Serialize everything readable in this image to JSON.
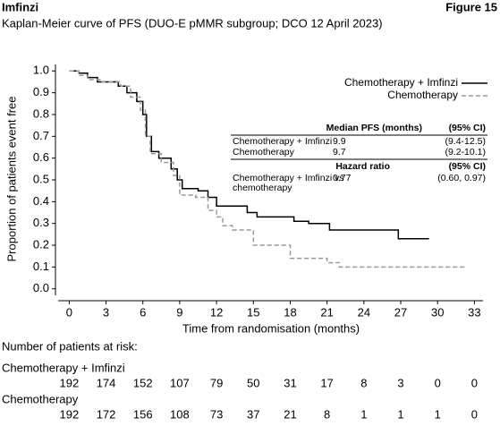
{
  "header": {
    "title": "Imfinzi",
    "figure": "Figure 15",
    "subtitle": "Kaplan-Meier curve of PFS (DUO-E pMMR subgroup; DCO 12 April 2023)"
  },
  "chart_data": {
    "type": "line",
    "xlabel": "Time from randomisation (months)",
    "ylabel": "Proportion of patients event free",
    "xlim": [
      -0.9,
      33.7
    ],
    "xticks": [
      0,
      3,
      6,
      9,
      12,
      15,
      18,
      21,
      24,
      27,
      30,
      33
    ],
    "ylim": [
      -0.03,
      1.03
    ],
    "yticks": [
      {
        "value": 0,
        "label": "0.0"
      },
      0.1,
      0.2,
      0.3,
      0.4,
      0.5,
      0.6,
      0.7,
      0.8,
      0.9,
      {
        "value": 1,
        "label": "1.0"
      }
    ],
    "legend_position": "upper right",
    "series": [
      {
        "name": "Chemotherapy + Imfinzi",
        "color": "#000000",
        "dashed": false,
        "x": [
          0,
          0.8,
          0.8,
          1.5,
          1.5,
          2.3,
          2.3,
          4,
          4,
          4.7,
          4.7,
          5.5,
          5.5,
          6,
          6,
          6.3,
          6.3,
          6.7,
          6.7,
          7.3,
          7.3,
          8.3,
          8.3,
          8.8,
          8.8,
          9.2,
          9.2,
          10.5,
          10.5,
          11.3,
          11.3,
          12,
          12,
          14.5,
          14.5,
          15.3,
          15.3,
          18.3,
          18.3,
          19.5,
          19.5,
          21.2,
          21.2,
          26.8,
          26.8,
          29.3
        ],
        "values": [
          1,
          1,
          0.99,
          0.99,
          0.97,
          0.97,
          0.95,
          0.95,
          0.93,
          0.93,
          0.9,
          0.9,
          0.86,
          0.86,
          0.8,
          0.8,
          0.7,
          0.7,
          0.63,
          0.63,
          0.6,
          0.6,
          0.55,
          0.55,
          0.5,
          0.5,
          0.46,
          0.46,
          0.45,
          0.45,
          0.42,
          0.42,
          0.38,
          0.38,
          0.35,
          0.35,
          0.33,
          0.33,
          0.31,
          0.31,
          0.3,
          0.3,
          0.27,
          0.27,
          0.23,
          0.23
        ]
      },
      {
        "name": "Chemotherapy",
        "color": "#999999",
        "dashed": true,
        "x": [
          0,
          0.8,
          0.8,
          1.5,
          1.5,
          2.5,
          2.5,
          4.2,
          4.2,
          5,
          5,
          5.8,
          5.8,
          6.2,
          6.2,
          6.6,
          6.6,
          7.5,
          7.5,
          8.5,
          8.5,
          9,
          9,
          10.3,
          10.3,
          11.3,
          11.3,
          12,
          12,
          12.5,
          12.5,
          13.3,
          13.3,
          15,
          15,
          18,
          18,
          21,
          21,
          22,
          22,
          32.2
        ],
        "values": [
          1,
          1,
          0.98,
          0.98,
          0.96,
          0.96,
          0.95,
          0.95,
          0.93,
          0.93,
          0.88,
          0.88,
          0.82,
          0.82,
          0.7,
          0.7,
          0.62,
          0.62,
          0.58,
          0.58,
          0.52,
          0.52,
          0.43,
          0.43,
          0.42,
          0.42,
          0.36,
          0.36,
          0.33,
          0.33,
          0.29,
          0.29,
          0.27,
          0.27,
          0.2,
          0.2,
          0.14,
          0.14,
          0.12,
          0.12,
          0.1,
          0.1
        ]
      }
    ]
  },
  "stats_table": {
    "header1": [
      "Median PFS (months)",
      "(95% CI)"
    ],
    "rows1": [
      [
        "Chemotherapy + Imfinzi",
        "9.9",
        "(9.4-12.5)"
      ],
      [
        "Chemotherapy",
        "9.7",
        "(9.2-10.1)"
      ]
    ],
    "header2": [
      "Hazard ratio",
      "(95% CI)"
    ],
    "rows2": [
      [
        [
          "Chemotherapy + Imfinzi vs",
          "chemotherapy"
        ],
        "0.77",
        "(0.60, 0.97)"
      ]
    ]
  },
  "risk_table": {
    "title": "Number of patients at risk:",
    "groups": [
      {
        "name": "Chemotherapy + Imfinzi",
        "values": [
          192,
          174,
          152,
          107,
          79,
          50,
          31,
          17,
          8,
          3,
          0,
          0
        ]
      },
      {
        "name": "Chemotherapy",
        "values": [
          192,
          172,
          156,
          108,
          73,
          37,
          21,
          8,
          1,
          1,
          1,
          0
        ]
      }
    ]
  }
}
